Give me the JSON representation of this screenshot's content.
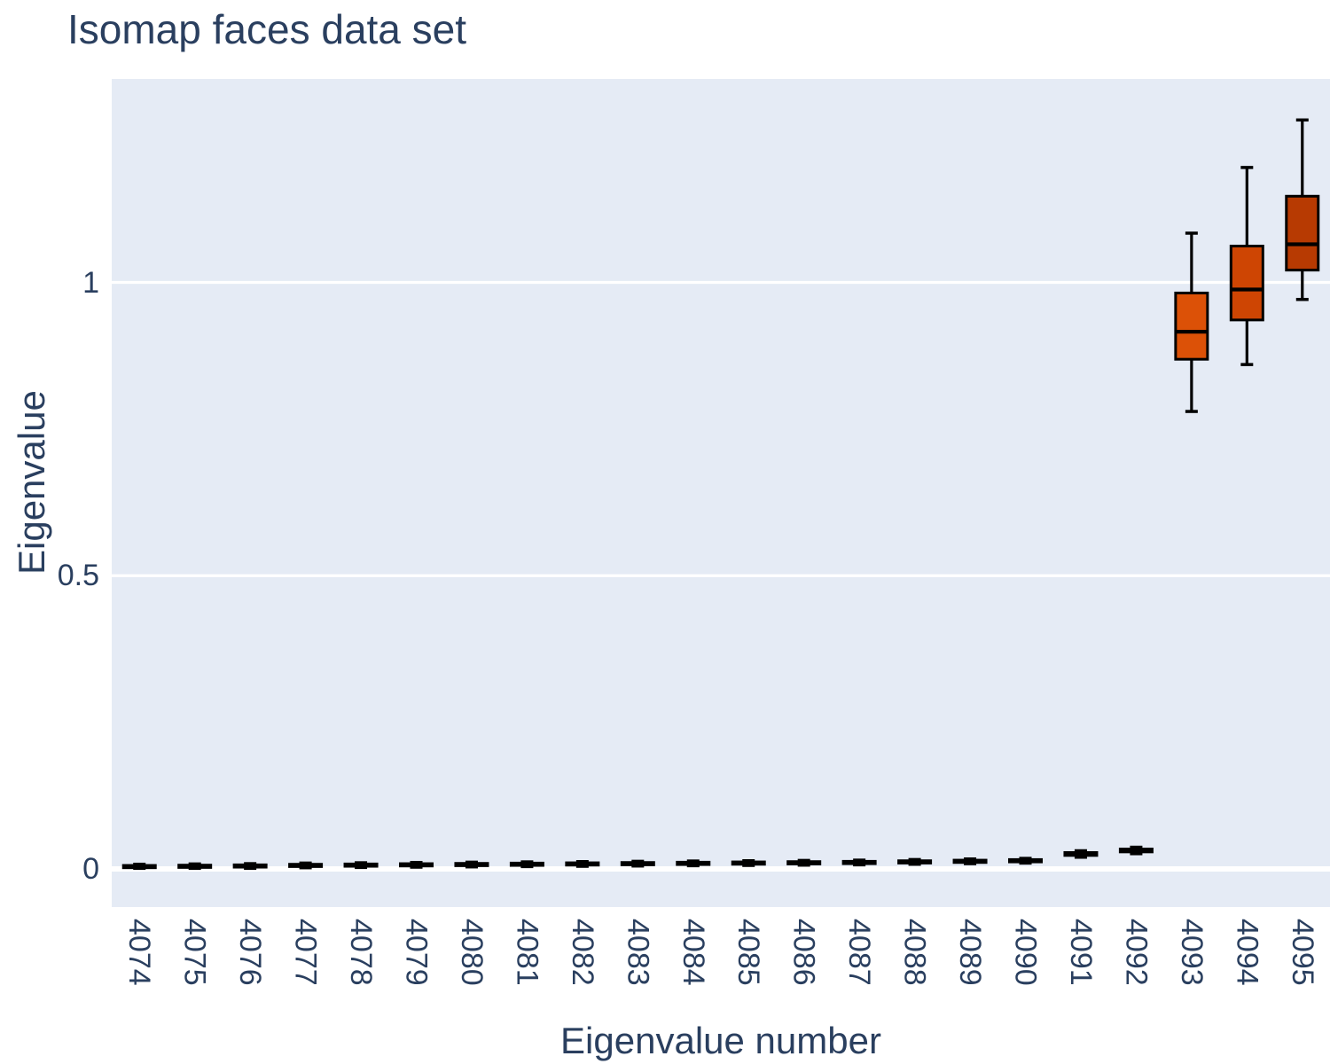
{
  "title": "Isomap faces data set",
  "axes": {
    "x_title": "Eigenvalue number",
    "y_title": "Eigenvalue"
  },
  "colors": {
    "title_text": "#2a3f5f",
    "tick_text": "#2a3f5f",
    "plot_background": "#e5ebf5",
    "gridline": "#ffffff",
    "box_line": "#000000",
    "box_fill_default": "#dc5107"
  },
  "chart_data": {
    "type": "box",
    "title": "Isomap faces data set",
    "xlabel": "Eigenvalue number",
    "ylabel": "Eigenvalue",
    "grid": "white horizontal gridlines on light blue panel",
    "legend": "none",
    "ylim": [
      -0.065,
      1.347
    ],
    "yticks": [
      0,
      0.5,
      1
    ],
    "ytick_labels": [
      "0",
      "0.5",
      "1"
    ],
    "categories": [
      "4074",
      "4075",
      "4076",
      "4077",
      "4078",
      "4079",
      "4080",
      "4081",
      "4082",
      "4083",
      "4084",
      "4085",
      "4086",
      "4087",
      "4088",
      "4089",
      "4090",
      "4091",
      "4092",
      "4093",
      "4094",
      "4095"
    ],
    "series": [
      {
        "label": "4074",
        "low": 0.001,
        "q1": 0.002,
        "median": 0.004,
        "q3": 0.006,
        "high": 0.008,
        "color": "#dc5107"
      },
      {
        "label": "4075",
        "low": 0.001,
        "q1": 0.0025,
        "median": 0.0045,
        "q3": 0.0065,
        "high": 0.0085,
        "color": "#dc5107"
      },
      {
        "label": "4076",
        "low": 0.001,
        "q1": 0.003,
        "median": 0.005,
        "q3": 0.007,
        "high": 0.009,
        "color": "#dc5107"
      },
      {
        "label": "4077",
        "low": 0.002,
        "q1": 0.004,
        "median": 0.006,
        "q3": 0.008,
        "high": 0.01,
        "color": "#dc5107"
      },
      {
        "label": "4078",
        "low": 0.0025,
        "q1": 0.0045,
        "median": 0.0065,
        "q3": 0.0085,
        "high": 0.0105,
        "color": "#dc5107"
      },
      {
        "label": "4079",
        "low": 0.003,
        "q1": 0.005,
        "median": 0.007,
        "q3": 0.009,
        "high": 0.011,
        "color": "#dc5107"
      },
      {
        "label": "4080",
        "low": 0.0035,
        "q1": 0.0055,
        "median": 0.0075,
        "q3": 0.0095,
        "high": 0.0115,
        "color": "#dc5107"
      },
      {
        "label": "4081",
        "low": 0.004,
        "q1": 0.006,
        "median": 0.008,
        "q3": 0.01,
        "high": 0.012,
        "color": "#dc5107"
      },
      {
        "label": "4082",
        "low": 0.0045,
        "q1": 0.0065,
        "median": 0.0085,
        "q3": 0.0105,
        "high": 0.0125,
        "color": "#dc5107"
      },
      {
        "label": "4083",
        "low": 0.005,
        "q1": 0.007,
        "median": 0.009,
        "q3": 0.011,
        "high": 0.013,
        "color": "#dc5107"
      },
      {
        "label": "4084",
        "low": 0.0055,
        "q1": 0.0075,
        "median": 0.0095,
        "q3": 0.0115,
        "high": 0.0135,
        "color": "#dc5107"
      },
      {
        "label": "4085",
        "low": 0.006,
        "q1": 0.008,
        "median": 0.01,
        "q3": 0.012,
        "high": 0.014,
        "color": "#dc5107"
      },
      {
        "label": "4086",
        "low": 0.0065,
        "q1": 0.0085,
        "median": 0.0105,
        "q3": 0.0125,
        "high": 0.0145,
        "color": "#dc5107"
      },
      {
        "label": "4087",
        "low": 0.007,
        "q1": 0.009,
        "median": 0.011,
        "q3": 0.013,
        "high": 0.015,
        "color": "#dc5107"
      },
      {
        "label": "4088",
        "low": 0.008,
        "q1": 0.01,
        "median": 0.012,
        "q3": 0.014,
        "high": 0.016,
        "color": "#dc5107"
      },
      {
        "label": "4089",
        "low": 0.009,
        "q1": 0.011,
        "median": 0.013,
        "q3": 0.015,
        "high": 0.017,
        "color": "#dc5107"
      },
      {
        "label": "4090",
        "low": 0.01,
        "q1": 0.012,
        "median": 0.014,
        "q3": 0.016,
        "high": 0.018,
        "color": "#dc5107"
      },
      {
        "label": "4091",
        "low": 0.02,
        "q1": 0.023,
        "median": 0.026,
        "q3": 0.028,
        "high": 0.031,
        "color": "#dc5107"
      },
      {
        "label": "4092",
        "low": 0.026,
        "q1": 0.029,
        "median": 0.032,
        "q3": 0.034,
        "high": 0.037,
        "color": "#dc5107"
      },
      {
        "label": "4093",
        "low": 0.78,
        "q1": 0.869,
        "median": 0.916,
        "q3": 0.982,
        "high": 1.084,
        "color": "#dc5107"
      },
      {
        "label": "4094",
        "low": 0.86,
        "q1": 0.936,
        "median": 0.988,
        "q3": 1.062,
        "high": 1.196,
        "color": "#ce4503"
      },
      {
        "label": "4095",
        "low": 0.971,
        "q1": 1.021,
        "median": 1.065,
        "q3": 1.147,
        "high": 1.277,
        "color": "#b73a02"
      }
    ]
  }
}
